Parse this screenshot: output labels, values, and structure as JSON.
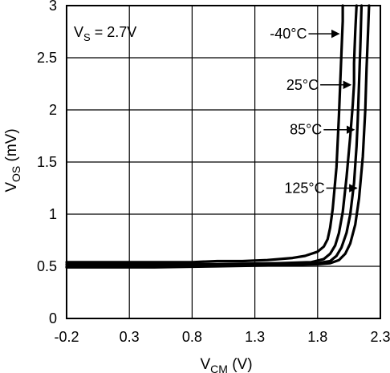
{
  "chart_data": {
    "type": "line",
    "xlabel": {
      "main": "V",
      "sub": "CM",
      "rest": " (V)"
    },
    "ylabel": {
      "main": "V",
      "sub": "OS",
      "rest": " (mV)"
    },
    "xlim": [
      -0.2,
      2.3
    ],
    "ylim": [
      0,
      3
    ],
    "xticks": [
      -0.2,
      0.3,
      0.8,
      1.3,
      1.8,
      2.3
    ],
    "xtick_labels": [
      "-0.2",
      "0.3",
      "0.8",
      "1.3",
      "1.8",
      "2.3"
    ],
    "yticks": [
      0,
      0.5,
      1,
      1.5,
      2,
      2.5,
      3
    ],
    "ytick_labels": [
      "0",
      "0.5",
      "1",
      "1.5",
      "2",
      "2.5",
      "3"
    ],
    "grid": true,
    "condition": {
      "main": "V",
      "sub": "S",
      "rest": " = 2.7V"
    },
    "series": [
      {
        "name": "-40°C",
        "x": [
          -0.2,
          0.5,
          0.8,
          1.0,
          1.2,
          1.4,
          1.6,
          1.7,
          1.75,
          1.8,
          1.85,
          1.88,
          1.9,
          1.92,
          1.95,
          1.97,
          1.99,
          2.0,
          2.0
        ],
        "y": [
          0.54,
          0.54,
          0.54,
          0.55,
          0.55,
          0.56,
          0.58,
          0.6,
          0.62,
          0.64,
          0.69,
          0.76,
          0.87,
          1.05,
          1.45,
          1.95,
          2.55,
          2.85,
          3.0
        ]
      },
      {
        "name": "25°C",
        "x": [
          -0.2,
          0.5,
          1.0,
          1.5,
          1.75,
          1.85,
          1.9,
          1.94,
          1.97,
          2.0,
          2.03,
          2.06,
          2.08,
          2.09,
          2.09,
          2.1,
          2.11
        ],
        "y": [
          0.52,
          0.52,
          0.52,
          0.53,
          0.54,
          0.57,
          0.62,
          0.7,
          0.82,
          1.02,
          1.35,
          1.75,
          2.05,
          2.25,
          2.45,
          2.75,
          3.0
        ]
      },
      {
        "name": "85°C",
        "x": [
          -0.2,
          0.5,
          1.0,
          1.5,
          1.8,
          1.9,
          1.95,
          1.99,
          2.03,
          2.06,
          2.09,
          2.11,
          2.12,
          2.13,
          2.14,
          2.15
        ],
        "y": [
          0.5,
          0.5,
          0.51,
          0.52,
          0.53,
          0.55,
          0.6,
          0.68,
          0.82,
          1.0,
          1.3,
          1.65,
          1.9,
          2.25,
          2.6,
          3.0
        ]
      },
      {
        "name": "125°C",
        "x": [
          -0.2,
          0.5,
          1.0,
          1.5,
          1.8,
          1.9,
          1.97,
          2.02,
          2.06,
          2.1,
          2.13,
          2.16,
          2.18,
          2.19,
          2.2,
          2.21
        ],
        "y": [
          0.49,
          0.49,
          0.5,
          0.51,
          0.52,
          0.53,
          0.56,
          0.62,
          0.72,
          0.9,
          1.15,
          1.55,
          2.0,
          2.4,
          2.7,
          3.0
        ]
      }
    ],
    "annotations": [
      {
        "label": "-40°C",
        "series": "-40°C",
        "y": 2.73
      },
      {
        "label": "25°C",
        "series": "25°C",
        "y": 2.24
      },
      {
        "label": "85°C",
        "series": "85°C",
        "y": 1.81
      },
      {
        "label": "125°C",
        "series": "125°C",
        "y": 1.25
      }
    ]
  }
}
